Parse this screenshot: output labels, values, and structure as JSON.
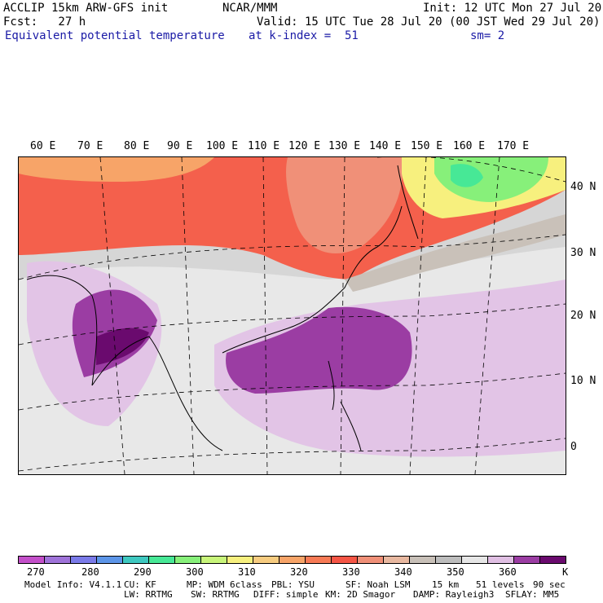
{
  "header": {
    "line1_left": "ACCLIP 15km ARW-GFS init",
    "line1_center": "NCAR/MMM",
    "line1_right": "Init: 12 UTC Mon 27 Jul 20",
    "line2_left": "Fcst:   27 h",
    "line2_right": "Valid: 15 UTC Tue 28 Jul 20 (00 JST Wed 29 Jul 20)",
    "line3_left": "Equivalent potential temperature",
    "line3_center": "at k-index =  51",
    "line3_right": "sm= 2"
  },
  "map": {
    "lon_labels": [
      "60 E",
      "70 E",
      "80 E",
      "90 E",
      "100 E",
      "110 E",
      "120 E",
      "130 E",
      "140 E",
      "150 E",
      "160 E",
      "170 E"
    ],
    "lat_labels": [
      "40 N",
      "30 N",
      "20 N",
      "10 N",
      "0"
    ]
  },
  "colorbar": {
    "unit": "K",
    "labels": [
      "270",
      "280",
      "290",
      "300",
      "310",
      "320",
      "330",
      "340",
      "350",
      "360"
    ],
    "colors": [
      "#c34fc9",
      "#9f73d9",
      "#7a7ae8",
      "#5c95e8",
      "#3ec8c0",
      "#47e896",
      "#87f07a",
      "#c8f57a",
      "#f7f07e",
      "#f7cc80",
      "#f7a468",
      "#f77a55",
      "#f55545",
      "#f09078",
      "#e8b8a0",
      "#c8c0b8",
      "#bdbdbd",
      "#e6e6e6",
      "#e0bfe3",
      "#9b3da3",
      "#6a0a6e"
    ]
  },
  "footer": {
    "line1": [
      "Model Info: V4.1.1",
      "CU: KF",
      "MP: WDM 6class",
      "PBL: YSU",
      "SF: Noah LSM",
      "15 km",
      "51 levels",
      "90 sec"
    ],
    "line2": [
      "LW: RRTMG",
      "SW: RRTMG",
      "DIFF: simple",
      "KM: 2D Smagor",
      "DAMP: Rayleigh3",
      "SFLAY: MM5"
    ]
  }
}
